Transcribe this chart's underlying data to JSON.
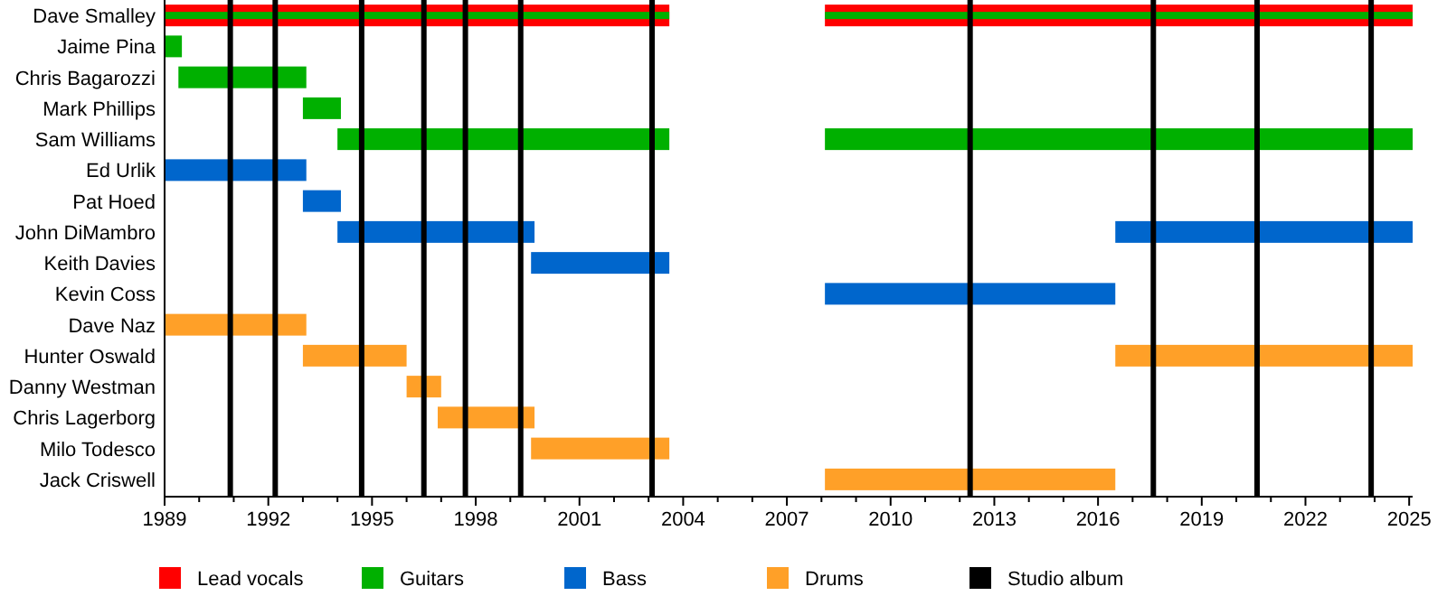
{
  "chart_data": {
    "type": "bar",
    "orientation": "horizontal",
    "categories": [
      "Dave Smalley",
      "Jaime Pina",
      "Chris Bagarozzi",
      "Mark Phillips",
      "Sam Williams",
      "Ed Urlik",
      "Pat Hoed",
      "John DiMambro",
      "Keith Davies",
      "Kevin Coss",
      "Dave Naz",
      "Hunter Oswald",
      "Danny Westman",
      "Chris Lagerborg",
      "Milo Todesco",
      "Jack Criswell"
    ],
    "series": [
      {
        "name": "Lead vocals",
        "color": "#ff0000",
        "base": [
          1989,
          null,
          null,
          null,
          null,
          null,
          null,
          null,
          null,
          null,
          null,
          null,
          null,
          null,
          null,
          null
        ],
        "values": [
          14.6,
          null,
          null,
          null,
          null,
          null,
          null,
          null,
          null,
          null,
          null,
          null,
          null,
          null,
          null,
          null
        ]
      },
      {
        "color": "#ff0000",
        "base": [
          2008.1,
          null,
          null,
          null,
          null,
          null,
          null,
          null,
          null,
          null,
          null,
          null,
          null,
          null,
          null,
          null
        ],
        "values": [
          17,
          null,
          null,
          null,
          null,
          null,
          null,
          null,
          null,
          null,
          null,
          null,
          null,
          null,
          null,
          null
        ]
      },
      {
        "name": "Guitars",
        "color": "#00b000",
        "base": [
          1989,
          1989,
          1989.4,
          1993,
          1994,
          null,
          null,
          null,
          null,
          null,
          null,
          null,
          null,
          null,
          null,
          null
        ],
        "values": [
          14.6,
          0.5,
          3.7,
          1.1,
          9.6,
          null,
          null,
          null,
          null,
          null,
          null,
          null,
          null,
          null,
          null,
          null
        ]
      },
      {
        "color": "#00b000",
        "base": [
          2008.1,
          null,
          null,
          null,
          2008.1,
          null,
          null,
          null,
          null,
          null,
          null,
          null,
          null,
          null,
          null,
          null
        ],
        "values": [
          17,
          null,
          null,
          null,
          17,
          null,
          null,
          null,
          null,
          null,
          null,
          null,
          null,
          null,
          null,
          null
        ]
      },
      {
        "name": "Bass",
        "color": "#0066cc",
        "base": [
          null,
          null,
          null,
          null,
          null,
          1989,
          1993,
          1994,
          1999.6,
          2008.1,
          null,
          null,
          null,
          null,
          null,
          null
        ],
        "values": [
          null,
          null,
          null,
          null,
          null,
          4.1,
          1.1,
          5.7,
          4,
          8.4,
          null,
          null,
          null,
          null,
          null,
          null
        ]
      },
      {
        "color": "#0066cc",
        "base": [
          null,
          null,
          null,
          null,
          null,
          null,
          null,
          2016.5,
          null,
          null,
          null,
          null,
          null,
          null,
          null,
          null
        ],
        "values": [
          null,
          null,
          null,
          null,
          null,
          null,
          null,
          8.6,
          null,
          null,
          null,
          null,
          null,
          null,
          null,
          null
        ]
      },
      {
        "name": "Drums",
        "color": "#ffa028",
        "base": [
          null,
          null,
          null,
          null,
          null,
          null,
          null,
          null,
          null,
          null,
          1989,
          1993,
          1996,
          1996.9,
          1999.6,
          2008.1
        ],
        "values": [
          null,
          null,
          null,
          null,
          null,
          null,
          null,
          null,
          null,
          null,
          4.1,
          3,
          1,
          2.8,
          4,
          8.4
        ]
      },
      {
        "color": "#ffa028",
        "base": [
          null,
          null,
          null,
          null,
          null,
          null,
          null,
          null,
          null,
          null,
          null,
          2016.5,
          null,
          null,
          null,
          null
        ],
        "values": [
          null,
          null,
          null,
          null,
          null,
          null,
          null,
          null,
          null,
          null,
          null,
          8.6,
          null,
          null,
          null,
          null
        ]
      }
    ],
    "xlim": [
      1989,
      2025.1
    ],
    "xticks": [
      1989,
      {
        "value": 1990,
        "label": null
      },
      {
        "value": 1991,
        "label": null
      },
      1992,
      {
        "value": 1993,
        "label": null
      },
      {
        "value": 1994,
        "label": null
      },
      1995,
      {
        "value": 1996,
        "label": null
      },
      {
        "value": 1997,
        "label": null
      },
      1998,
      {
        "value": 1999,
        "label": null
      },
      {
        "value": 2000,
        "label": null
      },
      2001,
      {
        "value": 2002,
        "label": null
      },
      {
        "value": 2003,
        "label": null
      },
      2004,
      {
        "value": 2005,
        "label": null
      },
      {
        "value": 2006,
        "label": null
      },
      2007,
      {
        "value": 2008,
        "label": null
      },
      {
        "value": 2009,
        "label": null
      },
      2010,
      {
        "value": 2011,
        "label": null
      },
      {
        "value": 2012,
        "label": null
      },
      2013,
      {
        "value": 2014,
        "label": null
      },
      {
        "value": 2015,
        "label": null
      },
      2016,
      {
        "value": 2017,
        "label": null
      },
      {
        "value": 2018,
        "label": null
      },
      2019,
      {
        "value": 2020,
        "label": null
      },
      {
        "value": 2021,
        "label": null
      },
      2022,
      {
        "value": 2023,
        "label": null
      },
      {
        "value": 2024,
        "label": null
      },
      2025
    ],
    "ref_lines": [
      {
        "axis": "x",
        "value": 1990.9,
        "label": "Studio album",
        "color": "#000000"
      },
      {
        "axis": "x",
        "value": 1992.2,
        "color": "#000000"
      },
      {
        "axis": "x",
        "value": 1994.7,
        "color": "#000000"
      },
      {
        "axis": "x",
        "value": 1996.5,
        "color": "#000000"
      },
      {
        "axis": "x",
        "value": 1997.7,
        "color": "#000000"
      },
      {
        "axis": "x",
        "value": 1999.3,
        "color": "#000000"
      },
      {
        "axis": "x",
        "value": 2003.1,
        "color": "#000000"
      },
      {
        "axis": "x",
        "value": 2012.3,
        "color": "#000000"
      },
      {
        "axis": "x",
        "value": 2017.6,
        "color": "#000000"
      },
      {
        "axis": "x",
        "value": 2020.6,
        "color": "#000000"
      },
      {
        "axis": "x",
        "value": 2023.9,
        "color": "#000000"
      }
    ],
    "legend": "bottom"
  }
}
